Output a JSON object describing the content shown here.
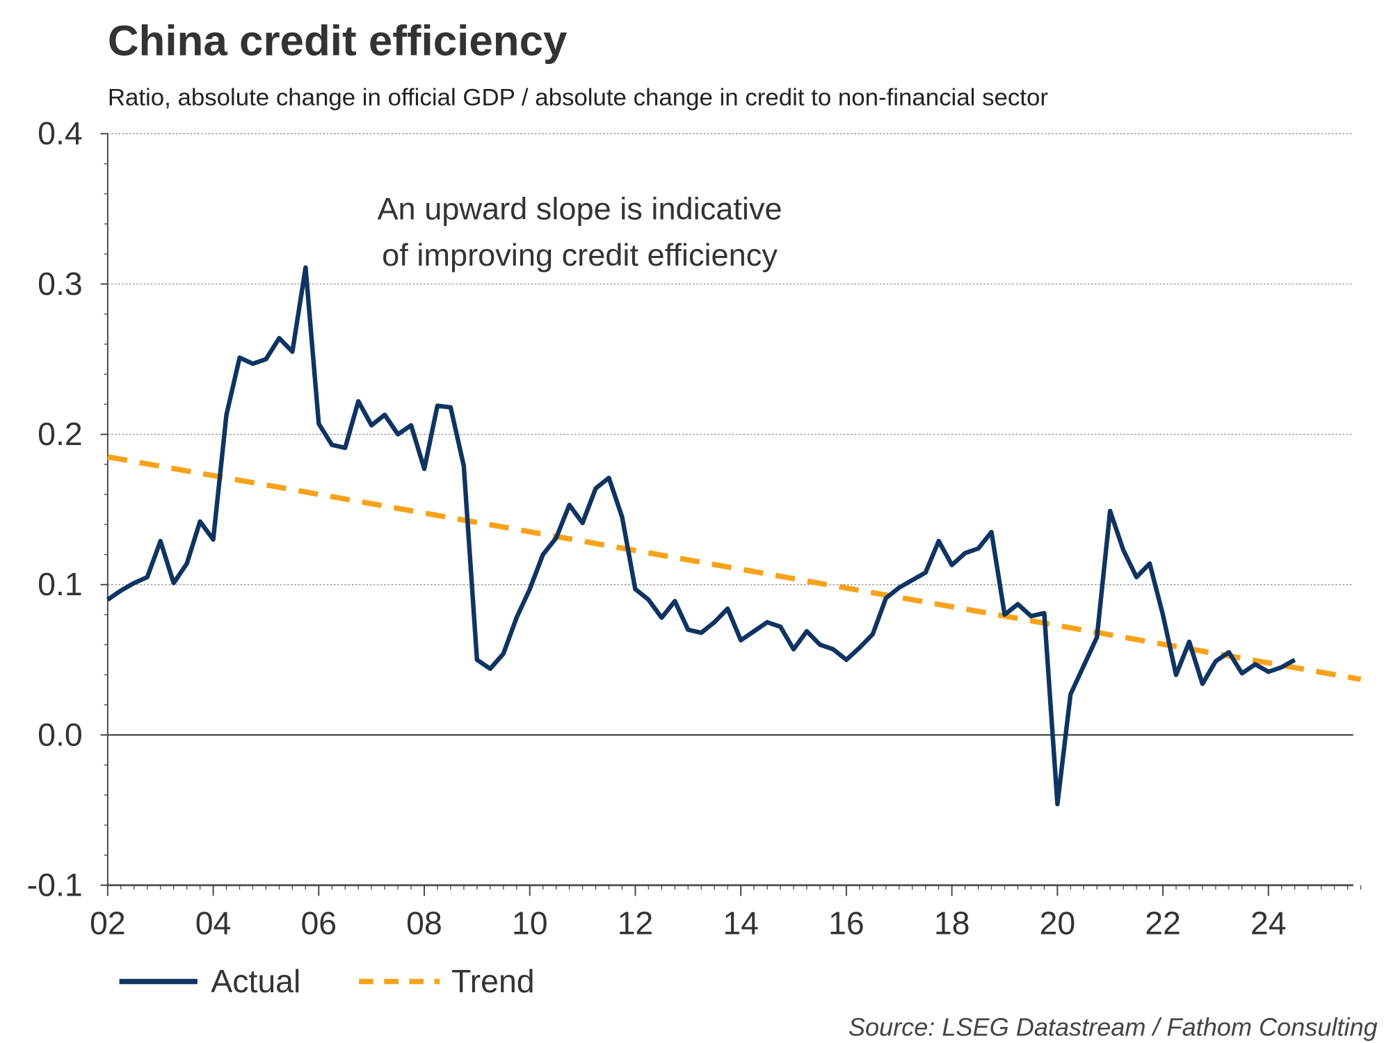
{
  "chart_data": {
    "type": "line",
    "title": "China credit efficiency",
    "subtitle": "Ratio, absolute change in official GDP / absolute change in credit to non-financial sector",
    "annotation": [
      "An upward slope is indicative",
      "of improving credit efficiency"
    ],
    "source": "Source: LSEG Datastream / Fathom Consulting",
    "xlabel": "",
    "ylabel": "",
    "ylim": [
      -0.1,
      0.4
    ],
    "xlim": [
      2002,
      2026
    ],
    "y_ticks": [
      "0.4",
      "0.3",
      "0.2",
      "0.1",
      "0.0",
      "-0.1"
    ],
    "y_tick_values": [
      0.4,
      0.3,
      0.2,
      0.1,
      0.0,
      -0.1
    ],
    "x_ticks": [
      "02",
      "04",
      "06",
      "08",
      "10",
      "12",
      "14",
      "16",
      "18",
      "20",
      "22",
      "24"
    ],
    "x_tick_values": [
      2002,
      2004,
      2006,
      2008,
      2010,
      2012,
      2014,
      2016,
      2018,
      2020,
      2022,
      2024
    ],
    "grid": "horizontal dotted",
    "legend_position": "bottom-left",
    "series": [
      {
        "name": "Actual",
        "color": "#0f3461",
        "style": "solid",
        "x_start": 2002.0,
        "x_step": 0.25,
        "values": [
          0.09,
          0.096,
          0.101,
          0.105,
          0.129,
          0.101,
          0.114,
          0.142,
          0.13,
          0.213,
          0.251,
          0.247,
          0.25,
          0.264,
          0.255,
          0.311,
          0.207,
          0.193,
          0.191,
          0.222,
          0.206,
          0.213,
          0.2,
          0.206,
          0.177,
          0.219,
          0.218,
          0.179,
          0.05,
          0.044,
          0.054,
          0.078,
          0.097,
          0.12,
          0.131,
          0.153,
          0.141,
          0.164,
          0.171,
          0.145,
          0.097,
          0.09,
          0.078,
          0.089,
          0.07,
          0.068,
          0.075,
          0.084,
          0.063,
          0.069,
          0.075,
          0.072,
          0.057,
          0.069,
          0.06,
          0.057,
          0.05,
          0.058,
          0.067,
          0.091,
          0.098,
          0.103,
          0.108,
          0.129,
          0.113,
          0.121,
          0.124,
          0.135,
          0.08,
          0.087,
          0.079,
          0.081,
          -0.046,
          0.027,
          0.046,
          0.065,
          0.149,
          0.123,
          0.105,
          0.114,
          0.08,
          0.04,
          0.062,
          0.034,
          0.049,
          0.055,
          0.041,
          0.047,
          0.042,
          0.045,
          0.05
        ]
      },
      {
        "name": "Trend",
        "color": "#f7a21b",
        "style": "dashed",
        "x": [
          2002.0,
          2025.75
        ],
        "values": [
          0.185,
          0.037
        ]
      }
    ]
  }
}
